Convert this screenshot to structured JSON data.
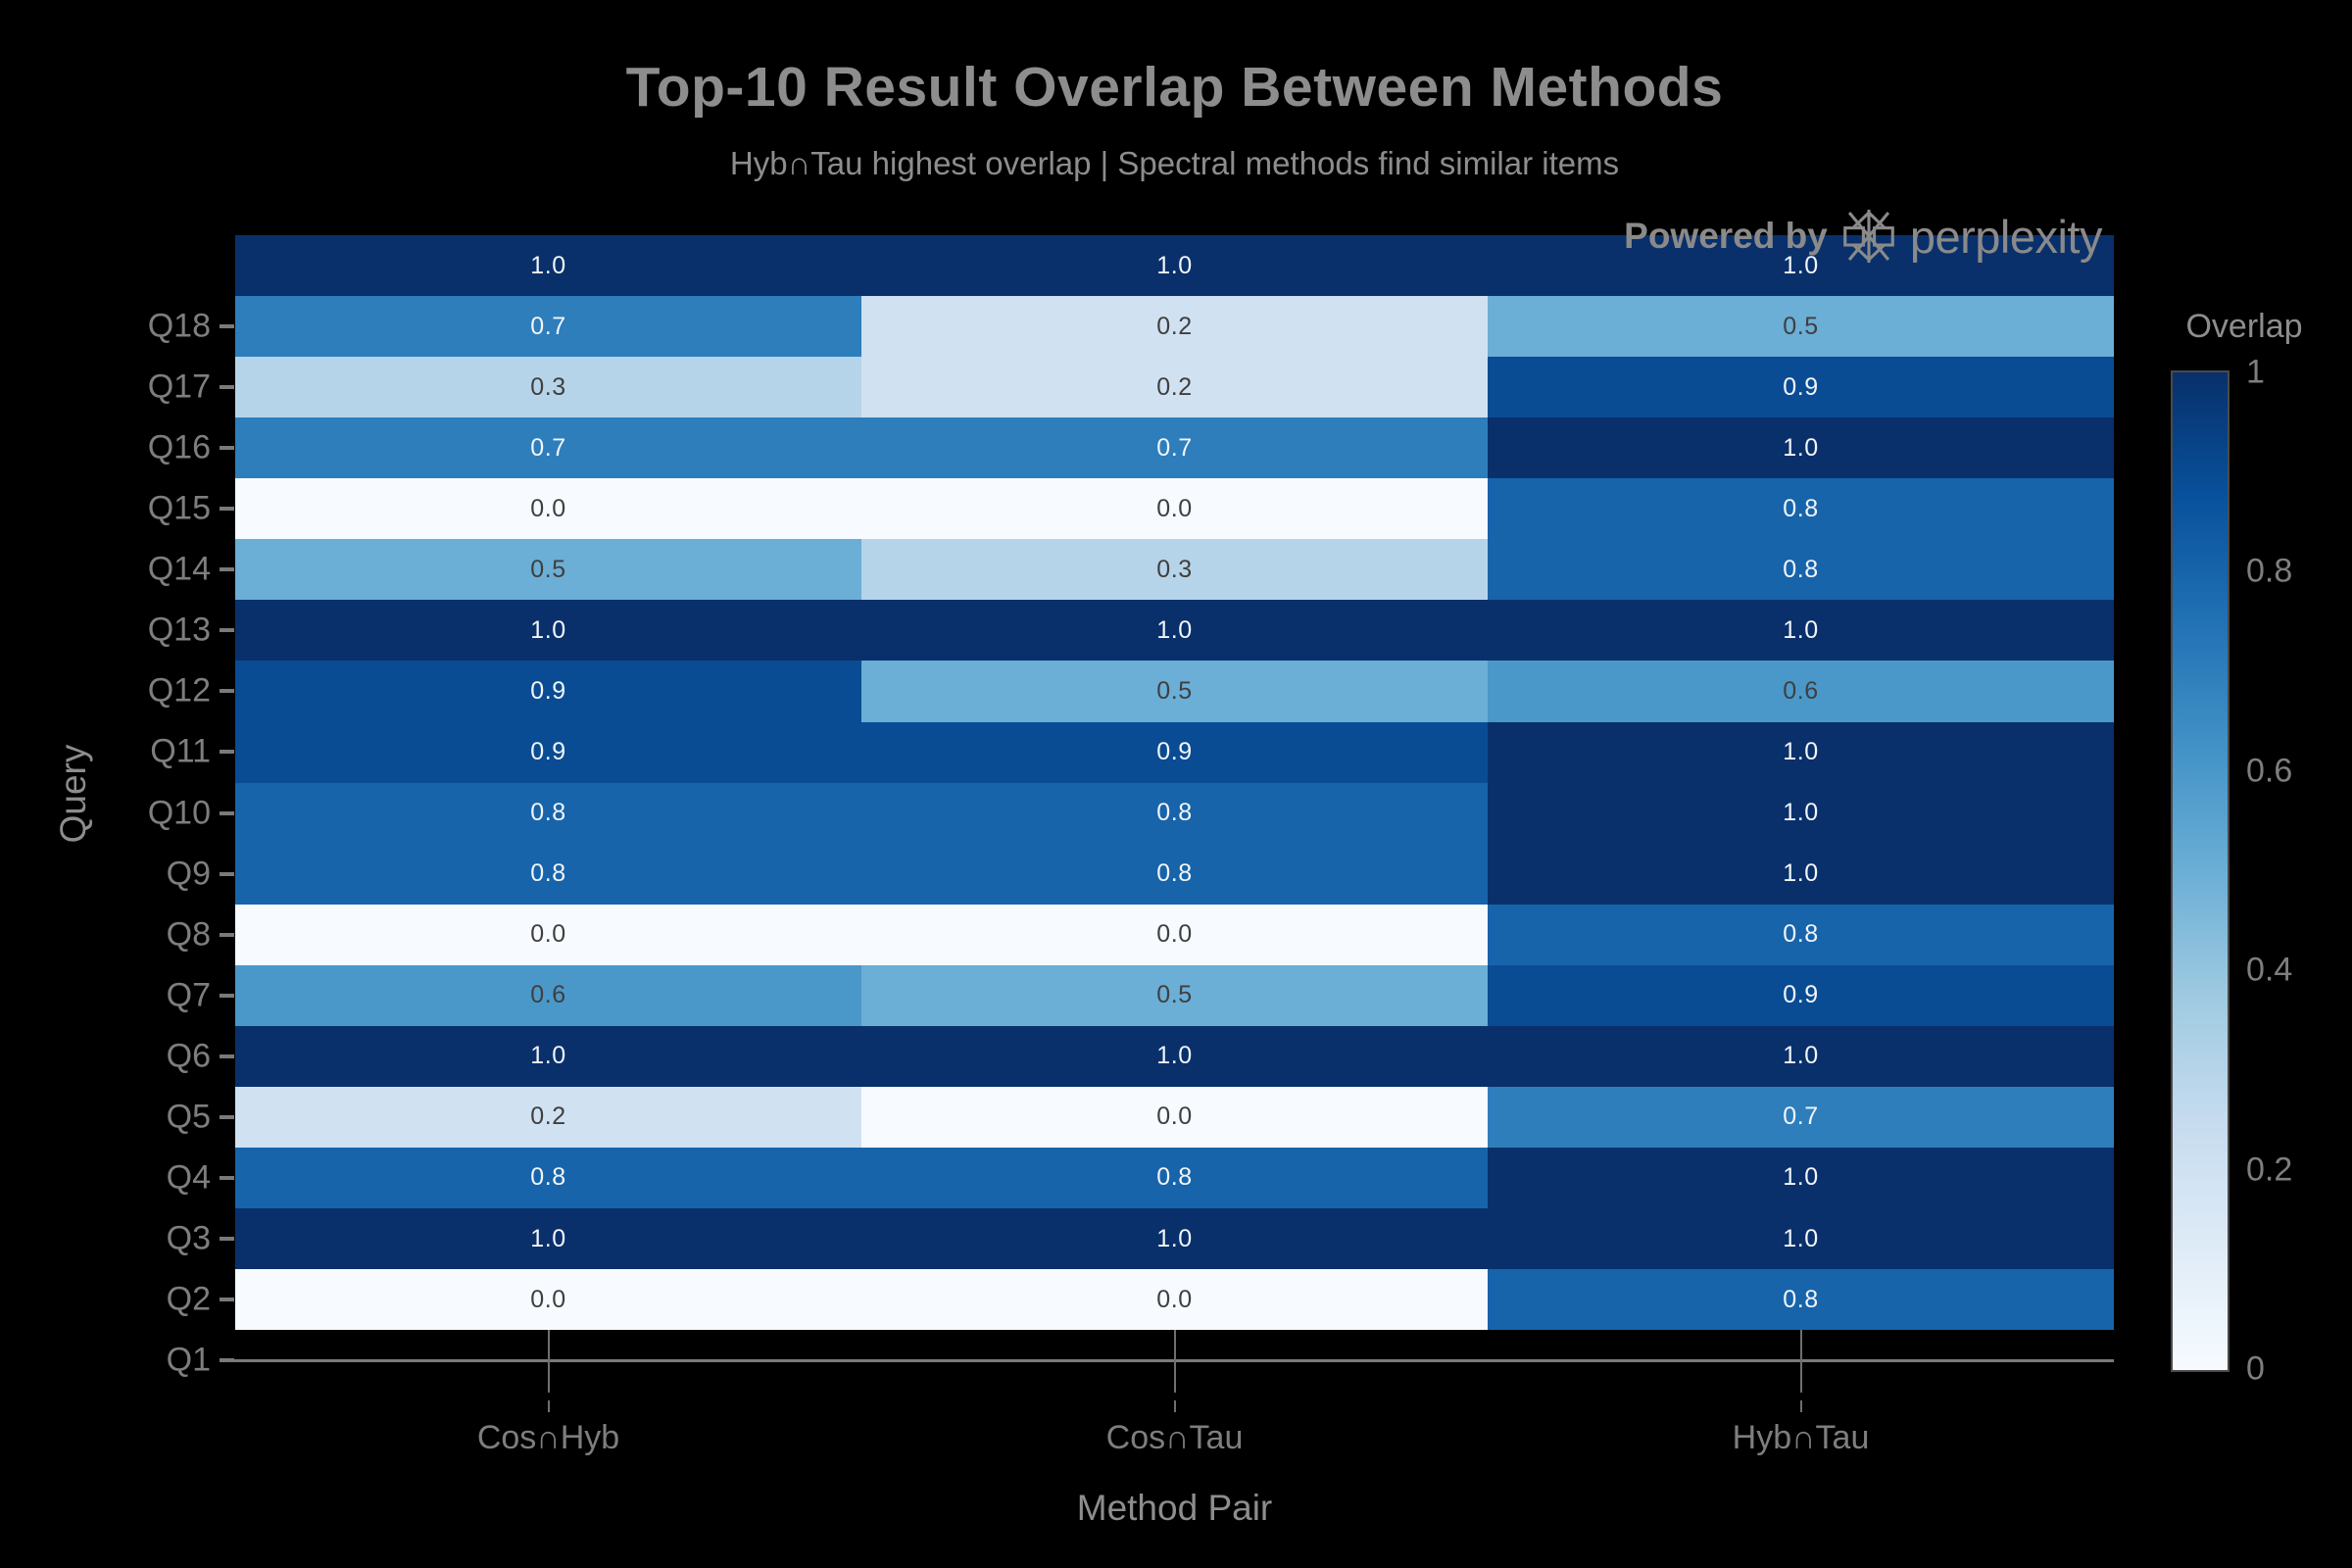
{
  "page": {
    "background": "#000000"
  },
  "header": {
    "title": "Top-10 Result Overlap Between Methods",
    "subtitle": "Hyb∩Tau highest overlap | Spectral methods find similar items",
    "attribution": {
      "prefix": "Powered by",
      "brand": "perplexity",
      "logo_icon": "perplexity-asterisk-icon"
    }
  },
  "chart_data": {
    "type": "heatmap",
    "title": "Top-10 Result Overlap Between Methods",
    "subtitle": "Hyb∩Tau highest overlap | Spectral methods find similar items",
    "xlabel": "Method Pair",
    "ylabel": "Query",
    "x_categories": [
      "Cos∩Hyb",
      "Cos∩Tau",
      "Hyb∩Tau"
    ],
    "y_tick_labels_top_to_bottom": [
      "Q18",
      "Q17",
      "Q16",
      "Q15",
      "Q14",
      "Q13",
      "Q12",
      "Q11",
      "Q10",
      "Q9",
      "Q8",
      "Q7",
      "Q6",
      "Q5",
      "Q4",
      "Q3",
      "Q2",
      "Q1"
    ],
    "rows_top_to_bottom": [
      {
        "y_label": "",
        "values": [
          1.0,
          1.0,
          1.0
        ]
      },
      {
        "y_label": "Q18",
        "values": [
          0.7,
          0.2,
          0.5
        ]
      },
      {
        "y_label": "Q17",
        "values": [
          0.3,
          0.2,
          0.9
        ]
      },
      {
        "y_label": "Q16",
        "values": [
          0.7,
          0.7,
          1.0
        ]
      },
      {
        "y_label": "Q15",
        "values": [
          0.0,
          0.0,
          0.8
        ]
      },
      {
        "y_label": "Q14",
        "values": [
          0.5,
          0.3,
          0.8
        ]
      },
      {
        "y_label": "Q13",
        "values": [
          1.0,
          1.0,
          1.0
        ]
      },
      {
        "y_label": "Q12",
        "values": [
          0.9,
          0.5,
          0.6
        ]
      },
      {
        "y_label": "Q11",
        "values": [
          0.9,
          0.9,
          1.0
        ]
      },
      {
        "y_label": "Q10",
        "values": [
          0.8,
          0.8,
          1.0
        ]
      },
      {
        "y_label": "Q9",
        "values": [
          0.8,
          0.8,
          1.0
        ]
      },
      {
        "y_label": "Q8",
        "values": [
          0.0,
          0.0,
          0.8
        ]
      },
      {
        "y_label": "Q7",
        "values": [
          0.6,
          0.5,
          0.9
        ]
      },
      {
        "y_label": "Q6",
        "values": [
          1.0,
          1.0,
          1.0
        ]
      },
      {
        "y_label": "Q5",
        "values": [
          0.2,
          0.0,
          0.7
        ]
      },
      {
        "y_label": "Q4",
        "values": [
          0.8,
          0.8,
          1.0
        ]
      },
      {
        "y_label": "Q3",
        "values": [
          1.0,
          1.0,
          1.0
        ]
      },
      {
        "y_label": "Q2",
        "values": [
          0.0,
          0.0,
          0.8
        ]
      }
    ],
    "zlim": [
      0,
      1
    ],
    "annotations_format": "one-decimal",
    "layout_note": "top row of cells has no y tick label; tick labels sit one row lower than cell centers; Q1 tick sits on the x-axis line below the grid",
    "grid": false,
    "legend_position": "right-colorbar",
    "colorbar": {
      "title": "Overlap",
      "tick_labels": [
        "1",
        "0.8",
        "0.6",
        "0.4",
        "0.2",
        "0"
      ],
      "tick_values": [
        1,
        0.8,
        0.6,
        0.4,
        0.2,
        0
      ]
    },
    "colormap": {
      "name": "Blues",
      "value_colors": {
        "0.0": "#f7fbff",
        "0.2": "#d0e1f2",
        "0.3": "#b6d4e9",
        "0.5": "#6baed6",
        "0.6": "#4a98c9",
        "0.7": "#2e7ebc",
        "0.8": "#1764ab",
        "0.9": "#0a4c94",
        "1.0": "#09306b"
      },
      "gradient_stops": [
        {
          "pos": 0,
          "color": "#08306b"
        },
        {
          "pos": 12.5,
          "color": "#08519c"
        },
        {
          "pos": 25,
          "color": "#2171b5"
        },
        {
          "pos": 37.5,
          "color": "#4292c6"
        },
        {
          "pos": 50,
          "color": "#6baed6"
        },
        {
          "pos": 62.5,
          "color": "#9ecae1"
        },
        {
          "pos": 75,
          "color": "#c6dbef"
        },
        {
          "pos": 87.5,
          "color": "#deebf7"
        },
        {
          "pos": 100,
          "color": "#f7fbff"
        }
      ],
      "annotation_text_light": "#f2f5f8",
      "annotation_text_dark": "#3f3f3f",
      "light_text_threshold": 0.7
    }
  }
}
